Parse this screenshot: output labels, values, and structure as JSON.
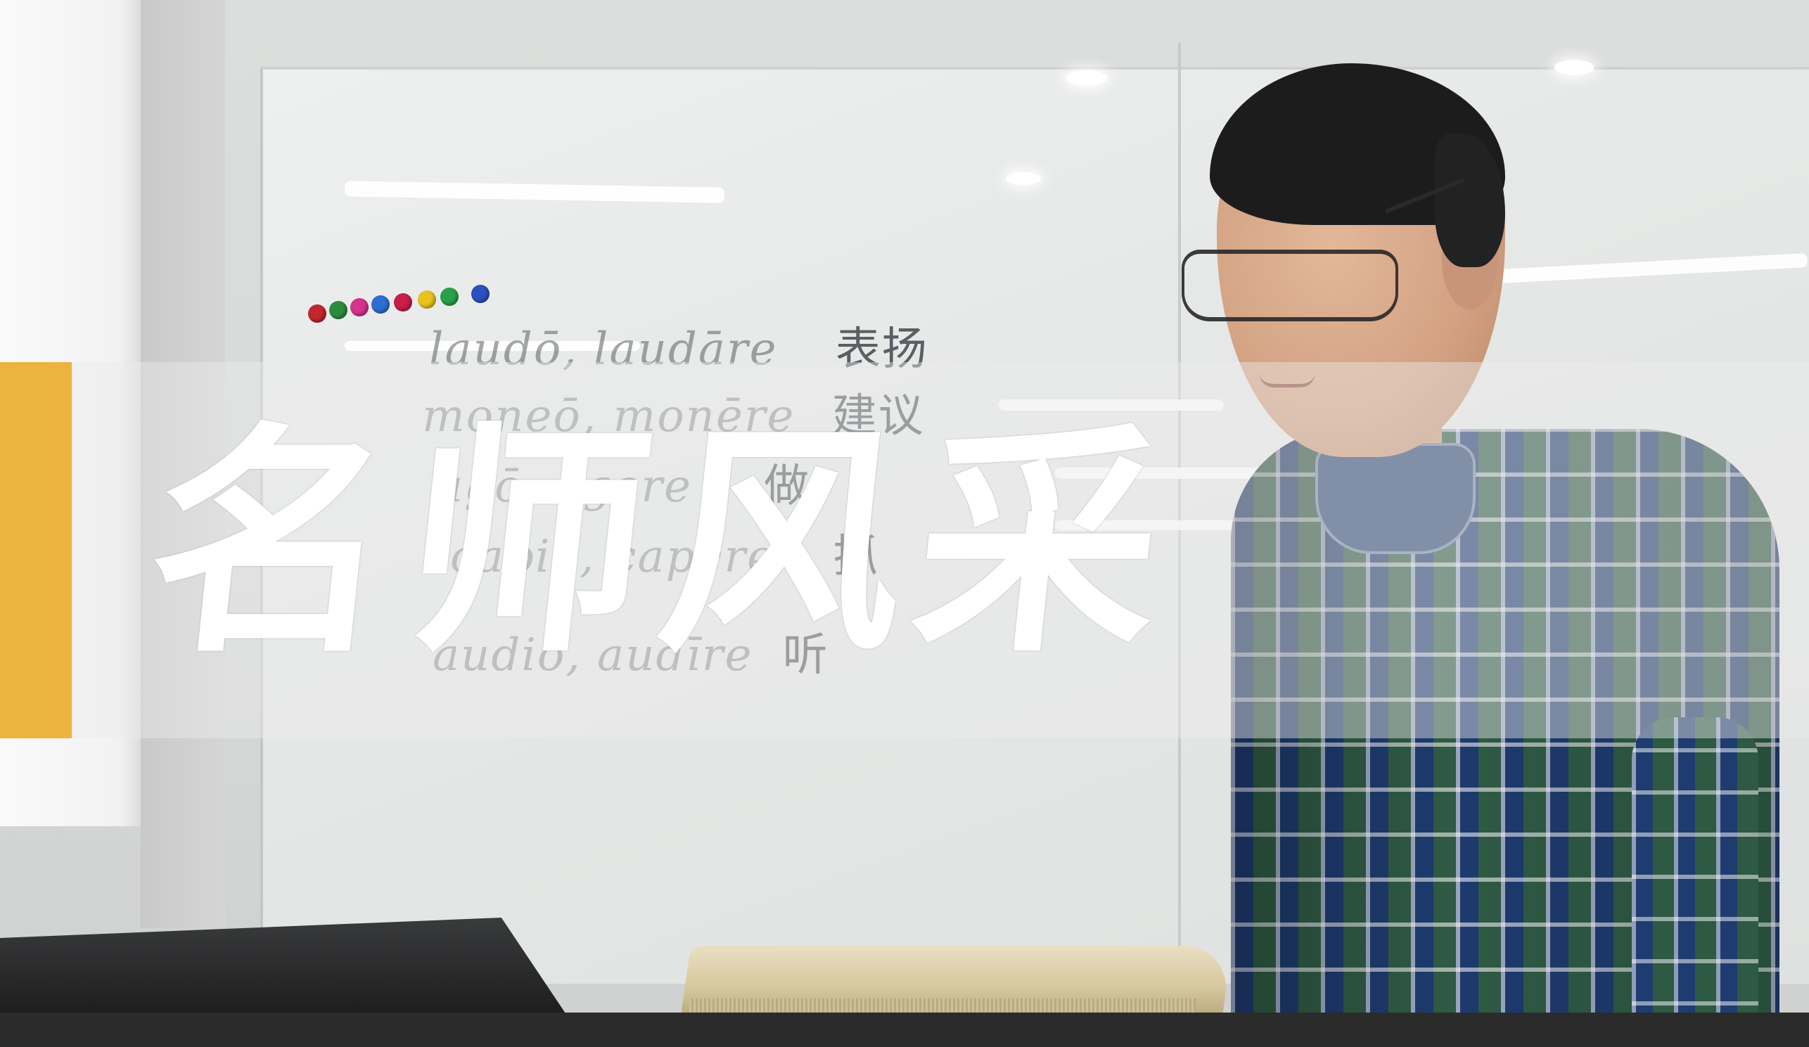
{
  "banner": {
    "headline": "名师风采",
    "accent_color": "#ecb33f"
  },
  "whiteboard": {
    "lines": [
      {
        "latin": "laudō, laudāre",
        "chinese": "表扬"
      },
      {
        "latin": "moneō, monēre",
        "chinese": "建议"
      },
      {
        "latin": "agō, agere",
        "chinese": "做"
      },
      {
        "latin": "capiō, capere",
        "chinese": "抓"
      },
      {
        "latin": "audiō, audīre",
        "chinese": "听"
      }
    ]
  },
  "magnets": {
    "colors": [
      "#c1272d",
      "#2e8b3e",
      "#d6338a",
      "#2d6fd1",
      "#c81e4a",
      "#e8c31f",
      "#2aa04a",
      "#2d4fc2"
    ]
  }
}
